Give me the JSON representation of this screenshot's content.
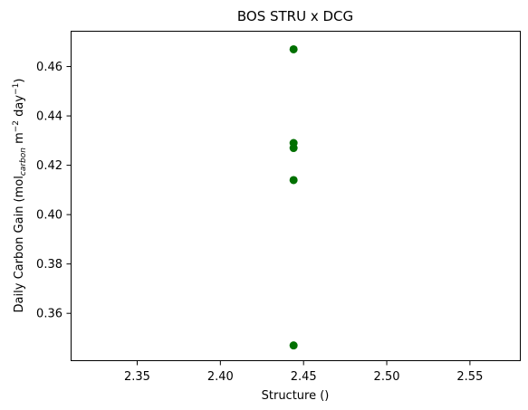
{
  "chart_data": {
    "type": "scatter",
    "title": "BOS STRU x DCG",
    "xlabel": "Structure ()",
    "ylabel": {
      "base": "Daily Carbon Gain (mol",
      "sub": "carbon",
      "mid": " m",
      "sup1": "−2",
      "mid2": " day",
      "sup2": "−1",
      "end": ")"
    },
    "xlim": [
      2.31,
      2.58
    ],
    "ylim": [
      0.341,
      0.4745
    ],
    "x_ticks": [
      {
        "value": 2.35,
        "label": "2.35"
      },
      {
        "value": 2.4,
        "label": "2.40"
      },
      {
        "value": 2.45,
        "label": "2.45"
      },
      {
        "value": 2.5,
        "label": "2.50"
      },
      {
        "value": 2.55,
        "label": "2.55"
      }
    ],
    "y_ticks": [
      {
        "value": 0.36,
        "label": "0.36"
      },
      {
        "value": 0.38,
        "label": "0.38"
      },
      {
        "value": 0.4,
        "label": "0.40"
      },
      {
        "value": 0.42,
        "label": "0.42"
      },
      {
        "value": 0.44,
        "label": "0.44"
      },
      {
        "value": 0.46,
        "label": "0.46"
      }
    ],
    "points": [
      {
        "x": 2.444,
        "y": 0.467
      },
      {
        "x": 2.444,
        "y": 0.429
      },
      {
        "x": 2.444,
        "y": 0.427
      },
      {
        "x": 2.444,
        "y": 0.414
      },
      {
        "x": 2.444,
        "y": 0.347
      }
    ],
    "marker_color": "#007000",
    "grid": false,
    "legend": "none"
  }
}
